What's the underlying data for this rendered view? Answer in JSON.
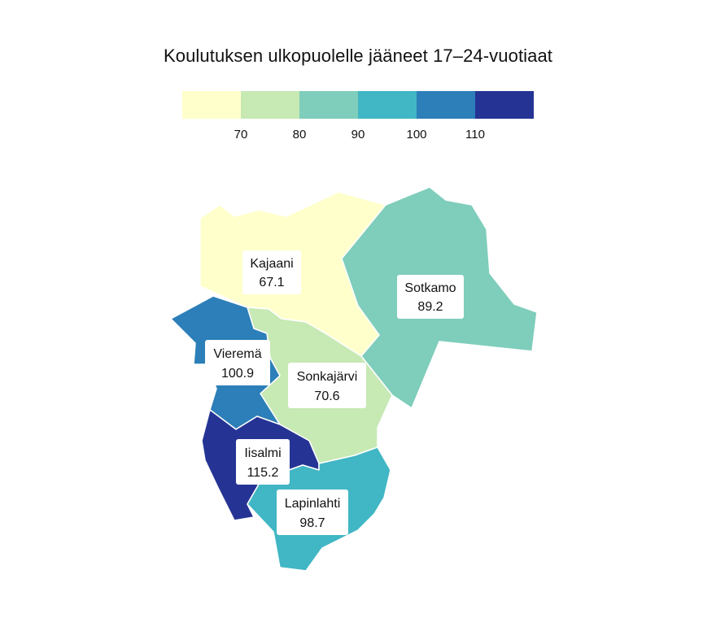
{
  "title": "Koulutuksen ulkopuolelle jääneet 17–24-vuotiaat",
  "legend": {
    "bins": [
      {
        "color": "#ffffcc"
      },
      {
        "color": "#c7e9b4"
      },
      {
        "color": "#7fcdbb"
      },
      {
        "color": "#41b6c4"
      },
      {
        "color": "#2c7fb8"
      },
      {
        "color": "#253494"
      }
    ],
    "ticks": [
      "70",
      "80",
      "90",
      "100",
      "110"
    ]
  },
  "regions": [
    {
      "id": "kajaani",
      "name": "Kajaani",
      "value": "67.1",
      "color": "#ffffcc"
    },
    {
      "id": "sotkamo",
      "name": "Sotkamo",
      "value": "89.2",
      "color": "#7fcdbb"
    },
    {
      "id": "vierema",
      "name": "Vieremä",
      "value": "100.9",
      "color": "#2c7fb8"
    },
    {
      "id": "sonkajarvi",
      "name": "Sonkajärvi",
      "value": "70.6",
      "color": "#c7e9b4"
    },
    {
      "id": "iisalmi",
      "name": "Iisalmi",
      "value": "115.2",
      "color": "#253494"
    },
    {
      "id": "lapinlahti",
      "name": "Lapinlahti",
      "value": "98.7",
      "color": "#41b6c4"
    }
  ]
}
